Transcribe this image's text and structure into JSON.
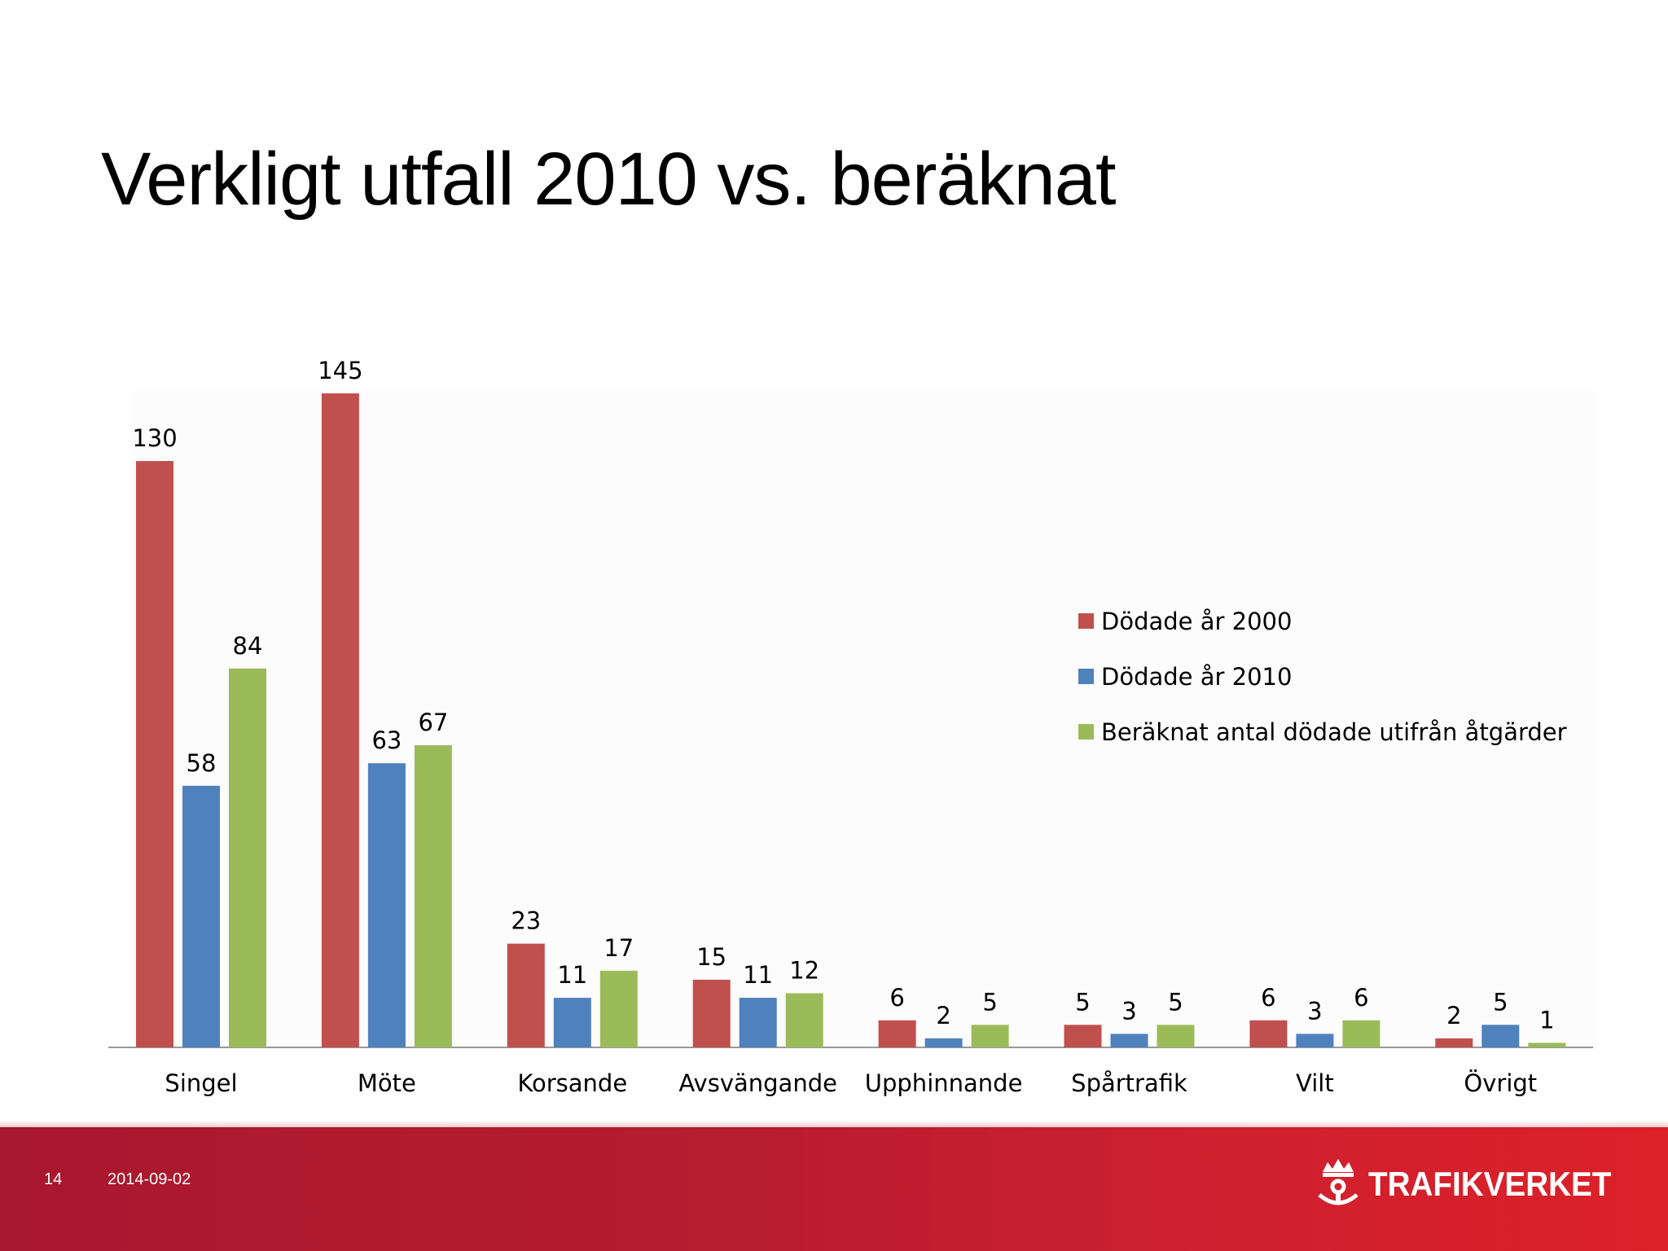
{
  "slide": {
    "title": "Verkligt utfall 2010 vs. beräknat",
    "page_number": "14",
    "date": "2014-09-02",
    "brand_name": "TRAFIKVERKET"
  },
  "colors": {
    "series_2000": "#c0504d",
    "series_2010": "#4f81bd",
    "series_calc": "#9bbb59",
    "footer": "#b81c2f"
  },
  "chart_data": {
    "type": "bar",
    "title": "",
    "xlabel": "",
    "ylabel": "",
    "ylim": [
      0,
      145
    ],
    "grid": false,
    "legend_position": "right",
    "categories": [
      "Singel",
      "Möte",
      "Korsande",
      "Avsvängande",
      "Upphinnande",
      "Spårtrafik",
      "Vilt",
      "Övrigt"
    ],
    "series": [
      {
        "name": "Dödade år 2000",
        "color": "#c0504d",
        "values": [
          130,
          145,
          23,
          15,
          6,
          5,
          6,
          2
        ]
      },
      {
        "name": "Dödade år 2010",
        "color": "#4f81bd",
        "values": [
          58,
          63,
          11,
          11,
          2,
          3,
          3,
          5
        ]
      },
      {
        "name": "Beräknat antal dödade utifrån åtgärder",
        "color": "#9bbb59",
        "values": [
          84,
          67,
          17,
          12,
          5,
          5,
          6,
          1
        ]
      }
    ]
  }
}
